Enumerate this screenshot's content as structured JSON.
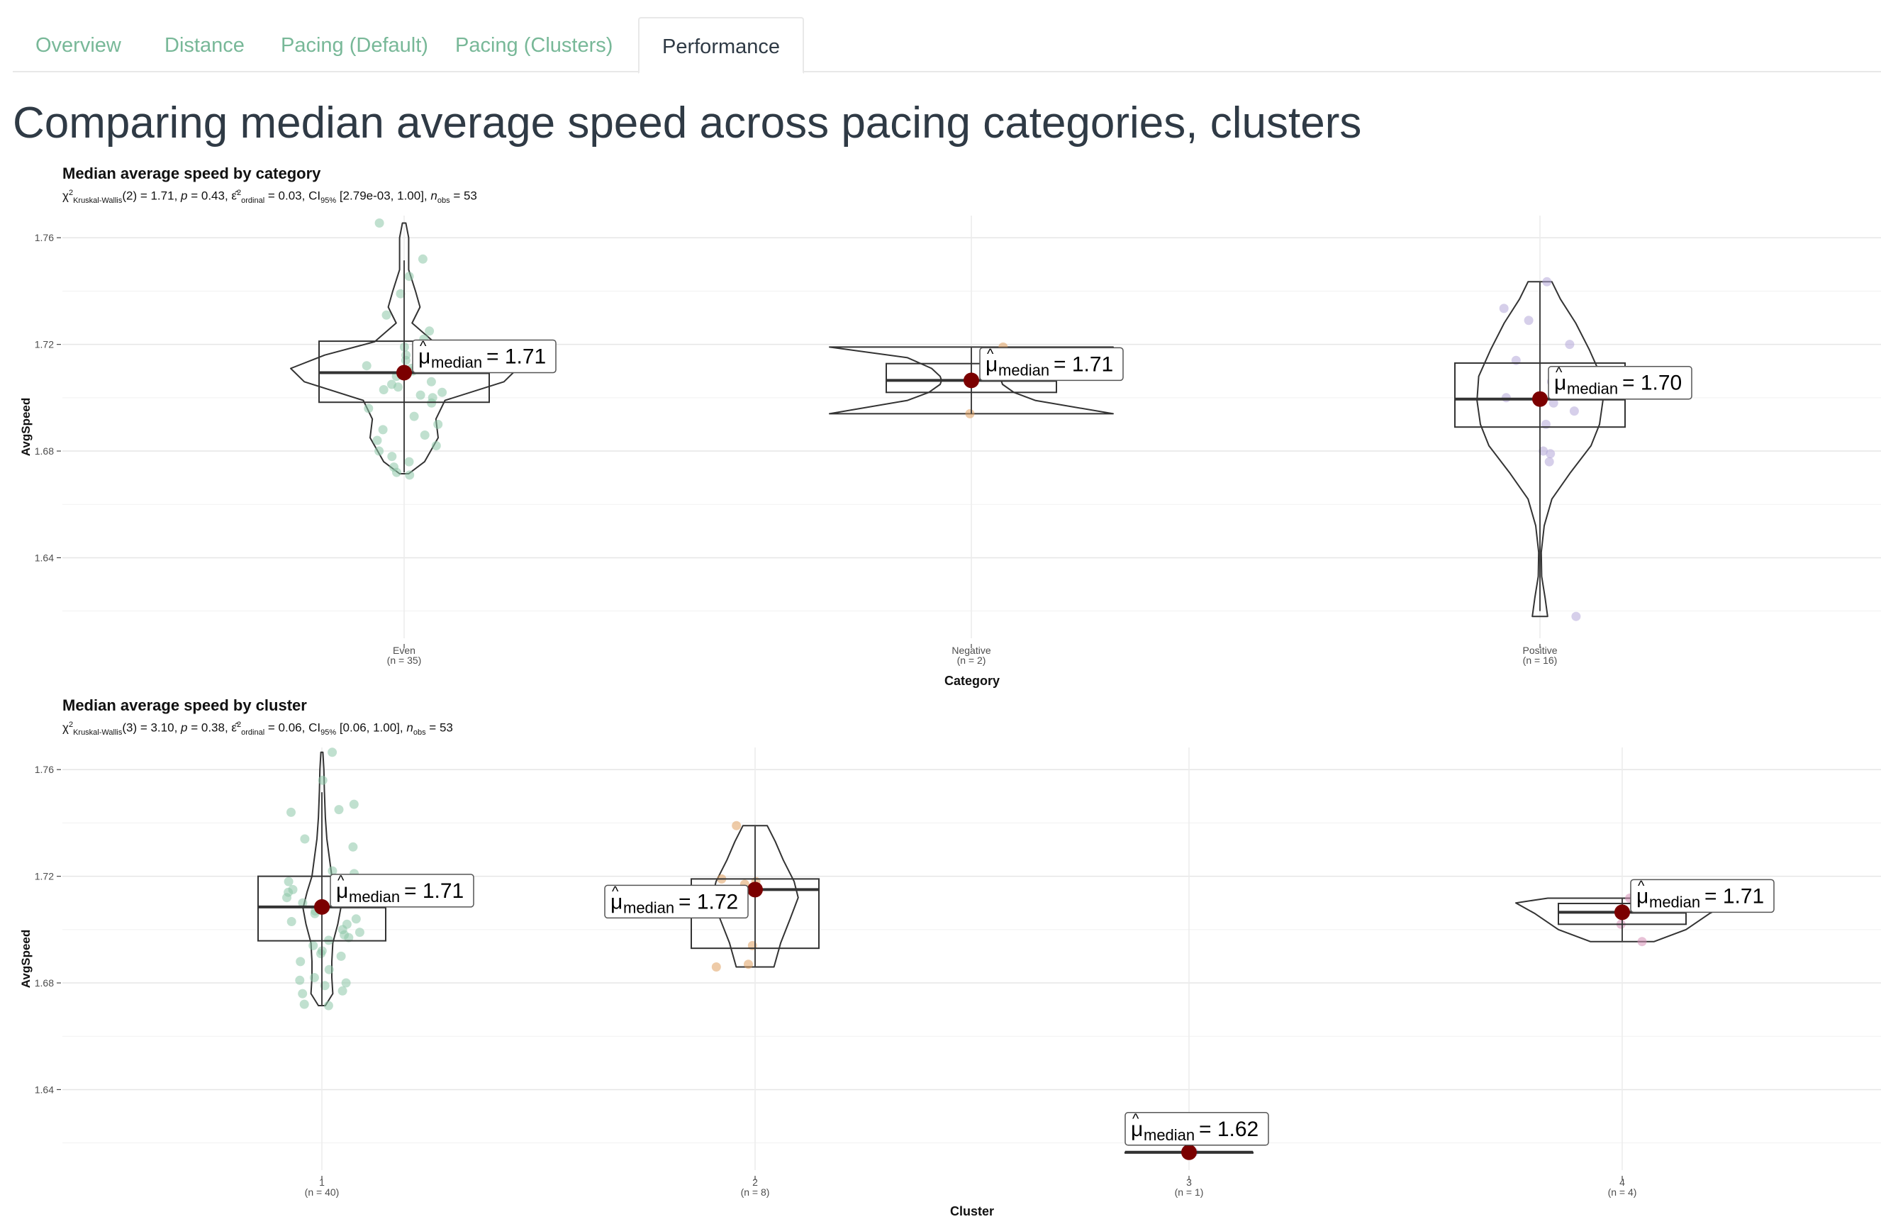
{
  "tabs": [
    {
      "label": "Overview",
      "active": false
    },
    {
      "label": "Distance",
      "active": false
    },
    {
      "label": "Pacing (Default)",
      "active": false
    },
    {
      "label": "Pacing (Clusters)",
      "active": false
    },
    {
      "label": "Performance",
      "active": true
    }
  ],
  "page_title": "Comparing median average speed across pacing categories, clusters",
  "colors": {
    "tab_text": "#78b898",
    "tab_active_text": "#2f3a45",
    "median_point": "#7b0000",
    "green_points": "#8cc7a8",
    "orange_points": "#e0a060",
    "purple_points": "#b5a8d8",
    "pink_points": "#d58fb7"
  },
  "chart_data": [
    {
      "type": "violin-box",
      "title": "Median average speed by category",
      "subtitle": {
        "stat_symbol": "χ",
        "stat_sup": "2",
        "stat_sub": "Kruskal-Wallis",
        "stat_value": "(2) = 1.71, ",
        "p_label": "p",
        "p_value": " = 0.43, ",
        "effect_symbol": "ε̂",
        "effect_sup": "2",
        "effect_sub": "ordinal",
        "effect_value": " = 0.03, CI",
        "ci_sub": "95%",
        "ci_value": " [2.79e-03, 1.00], ",
        "n_label": "n",
        "n_sub": "obs",
        "n_value": " = 53"
      },
      "xlabel": "Category",
      "ylabel": "AvgSpeed",
      "ylim": [
        1.6098,
        1.7683
      ],
      "yticks": [
        1.64,
        1.68,
        1.72,
        1.76
      ],
      "ytick_labels": [
        "1.64",
        "1.68",
        "1.72",
        "1.76"
      ],
      "categories": [
        "Even",
        "Negative",
        "Positive"
      ],
      "n_labels": [
        "(n = 35)",
        "(n = 2)",
        "(n = 16)"
      ],
      "groups": [
        {
          "category": "Even",
          "point_color": "green",
          "median": 1.7094,
          "label": "= 1.71",
          "label_side": "right",
          "box": {
            "q1": 1.6983,
            "q3": 1.7212
          },
          "whisker": [
            1.672,
            1.7515
          ],
          "violin": [
            [
              1.6715,
              0.04
            ],
            [
              1.676,
              0.18
            ],
            [
              1.685,
              0.3
            ],
            [
              1.692,
              0.28
            ],
            [
              1.699,
              0.36
            ],
            [
              1.706,
              0.88
            ],
            [
              1.711,
              1.0
            ],
            [
              1.716,
              0.7
            ],
            [
              1.721,
              0.26
            ],
            [
              1.728,
              0.07
            ],
            [
              1.734,
              0.14
            ],
            [
              1.74,
              0.1
            ],
            [
              1.748,
              0.04
            ],
            [
              1.76,
              0.04
            ],
            [
              1.7655,
              0.015
            ]
          ],
          "points": [
            1.7655,
            1.752,
            1.7455,
            1.739,
            1.731,
            1.725,
            1.722,
            1.719,
            1.716,
            1.714,
            1.712,
            1.711,
            1.71,
            1.708,
            1.706,
            1.705,
            1.704,
            1.703,
            1.702,
            1.701,
            1.7,
            1.698,
            1.696,
            1.693,
            1.69,
            1.688,
            1.686,
            1.684,
            1.682,
            1.68,
            1.678,
            1.676,
            1.674,
            1.672,
            1.671
          ]
        },
        {
          "category": "Negative",
          "point_color": "orange",
          "median": 1.7065,
          "label": "= 1.71",
          "label_side": "right",
          "box": {
            "q1": 1.702,
            "q3": 1.7128
          },
          "whisker": [
            1.694,
            1.719
          ],
          "violin": [
            [
              1.694,
              1.0
            ],
            [
              1.699,
              0.45
            ],
            [
              1.702,
              0.3
            ],
            [
              1.705,
              0.22
            ],
            [
              1.7065,
              0.21
            ],
            [
              1.708,
              0.22
            ],
            [
              1.711,
              0.28
            ],
            [
              1.715,
              0.45
            ],
            [
              1.719,
              1.0
            ]
          ],
          "points": [
            1.719,
            1.694
          ]
        },
        {
          "category": "Positive",
          "point_color": "purple",
          "median": 1.6995,
          "label": "= 1.70",
          "label_side": "right",
          "box": {
            "q1": 1.689,
            "q3": 1.713
          },
          "whisker": [
            1.62,
            1.7435
          ],
          "violin": [
            [
              1.618,
              0.09
            ],
            [
              1.625,
              0.06
            ],
            [
              1.633,
              0.02
            ],
            [
              1.642,
              0.015
            ],
            [
              1.652,
              0.05
            ],
            [
              1.662,
              0.14
            ],
            [
              1.672,
              0.36
            ],
            [
              1.682,
              0.6
            ],
            [
              1.69,
              0.7
            ],
            [
              1.699,
              0.74
            ],
            [
              1.708,
              0.72
            ],
            [
              1.718,
              0.58
            ],
            [
              1.728,
              0.42
            ],
            [
              1.737,
              0.24
            ],
            [
              1.7435,
              0.14
            ]
          ],
          "points": [
            1.7435,
            1.7335,
            1.729,
            1.72,
            1.714,
            1.71,
            1.706,
            1.703,
            1.7,
            1.698,
            1.695,
            1.69,
            1.68,
            1.679,
            1.676,
            1.618
          ]
        }
      ]
    },
    {
      "type": "violin-box",
      "title": "Median average speed by cluster",
      "subtitle": {
        "stat_symbol": "χ",
        "stat_sup": "2",
        "stat_sub": "Kruskal-Wallis",
        "stat_value": "(3) = 3.10, ",
        "p_label": "p",
        "p_value": " = 0.38, ",
        "effect_symbol": "ε̂",
        "effect_sup": "2",
        "effect_sub": "ordinal",
        "effect_value": " = 0.06, CI",
        "ci_sub": "95%",
        "ci_value": " [0.06, 1.00], ",
        "n_label": "n",
        "n_sub": "obs",
        "n_value": " = 53"
      },
      "xlabel": "Cluster",
      "ylabel": "AvgSpeed",
      "ylim": [
        1.6098,
        1.7683
      ],
      "yticks": [
        1.64,
        1.68,
        1.72,
        1.76
      ],
      "ytick_labels": [
        "1.64",
        "1.68",
        "1.72",
        "1.76"
      ],
      "categories": [
        "1",
        "2",
        "3",
        "4"
      ],
      "n_labels": [
        "(n = 40)",
        "(n = 8)",
        "(n = 1)",
        "(n = 4)"
      ],
      "groups": [
        {
          "category": "1",
          "point_color": "green",
          "median": 1.7085,
          "label": "= 1.71",
          "label_side": "right",
          "box": {
            "q1": 1.6958,
            "q3": 1.72
          },
          "whisker": [
            1.6715,
            1.7515
          ],
          "violin": [
            [
              1.6715,
              0.07
            ],
            [
              1.676,
              0.22
            ],
            [
              1.682,
              0.2
            ],
            [
              1.688,
              0.2
            ],
            [
              1.695,
              0.22
            ],
            [
              1.702,
              0.32
            ],
            [
              1.708,
              0.38
            ],
            [
              1.714,
              0.3
            ],
            [
              1.72,
              0.2
            ],
            [
              1.727,
              0.15
            ],
            [
              1.734,
              0.1
            ],
            [
              1.742,
              0.07
            ],
            [
              1.752,
              0.05
            ],
            [
              1.76,
              0.04
            ],
            [
              1.7665,
              0.02
            ]
          ],
          "points": [
            1.7665,
            1.756,
            1.747,
            1.745,
            1.744,
            1.734,
            1.731,
            1.722,
            1.721,
            1.718,
            1.715,
            1.714,
            1.712,
            1.71,
            1.709,
            1.708,
            1.707,
            1.706,
            1.704,
            1.703,
            1.702,
            1.7,
            1.699,
            1.698,
            1.697,
            1.696,
            1.694,
            1.692,
            1.691,
            1.69,
            1.688,
            1.685,
            1.682,
            1.681,
            1.68,
            1.679,
            1.677,
            1.676,
            1.672,
            1.6715
          ]
        },
        {
          "category": "2",
          "point_color": "orange",
          "median": 1.715,
          "label": "= 1.72",
          "label_side": "left",
          "box": {
            "q1": 1.693,
            "q3": 1.719
          },
          "whisker": [
            1.686,
            1.739
          ],
          "violin": [
            [
              1.686,
              0.28
            ],
            [
              1.695,
              0.38
            ],
            [
              1.704,
              0.52
            ],
            [
              1.712,
              0.64
            ],
            [
              1.718,
              0.58
            ],
            [
              1.726,
              0.42
            ],
            [
              1.733,
              0.3
            ],
            [
              1.739,
              0.18
            ]
          ],
          "points": [
            1.739,
            1.719,
            1.718,
            1.715,
            1.694,
            1.687,
            1.686,
            1.717
          ]
        },
        {
          "category": "3",
          "point_color": "purple",
          "median": 1.6165,
          "label": "= 1.62",
          "label_side": "top",
          "box": {
            "q1": 1.6165,
            "q3": 1.6165
          },
          "whisker": [
            1.6165,
            1.6165
          ],
          "violin": [],
          "points": [
            1.6165
          ]
        },
        {
          "category": "4",
          "point_color": "pink",
          "median": 1.7065,
          "label": "= 1.71",
          "label_side": "right",
          "box": {
            "q1": 1.702,
            "q3": 1.7098
          },
          "whisker": [
            1.6955,
            1.7118
          ],
          "violin": [
            [
              1.6955,
              0.3
            ],
            [
              1.7,
              0.6
            ],
            [
              1.706,
              0.82
            ],
            [
              1.71,
              1.0
            ],
            [
              1.7118,
              0.7
            ]
          ],
          "points": [
            1.7118,
            1.7098,
            1.702,
            1.6955
          ]
        }
      ]
    }
  ]
}
